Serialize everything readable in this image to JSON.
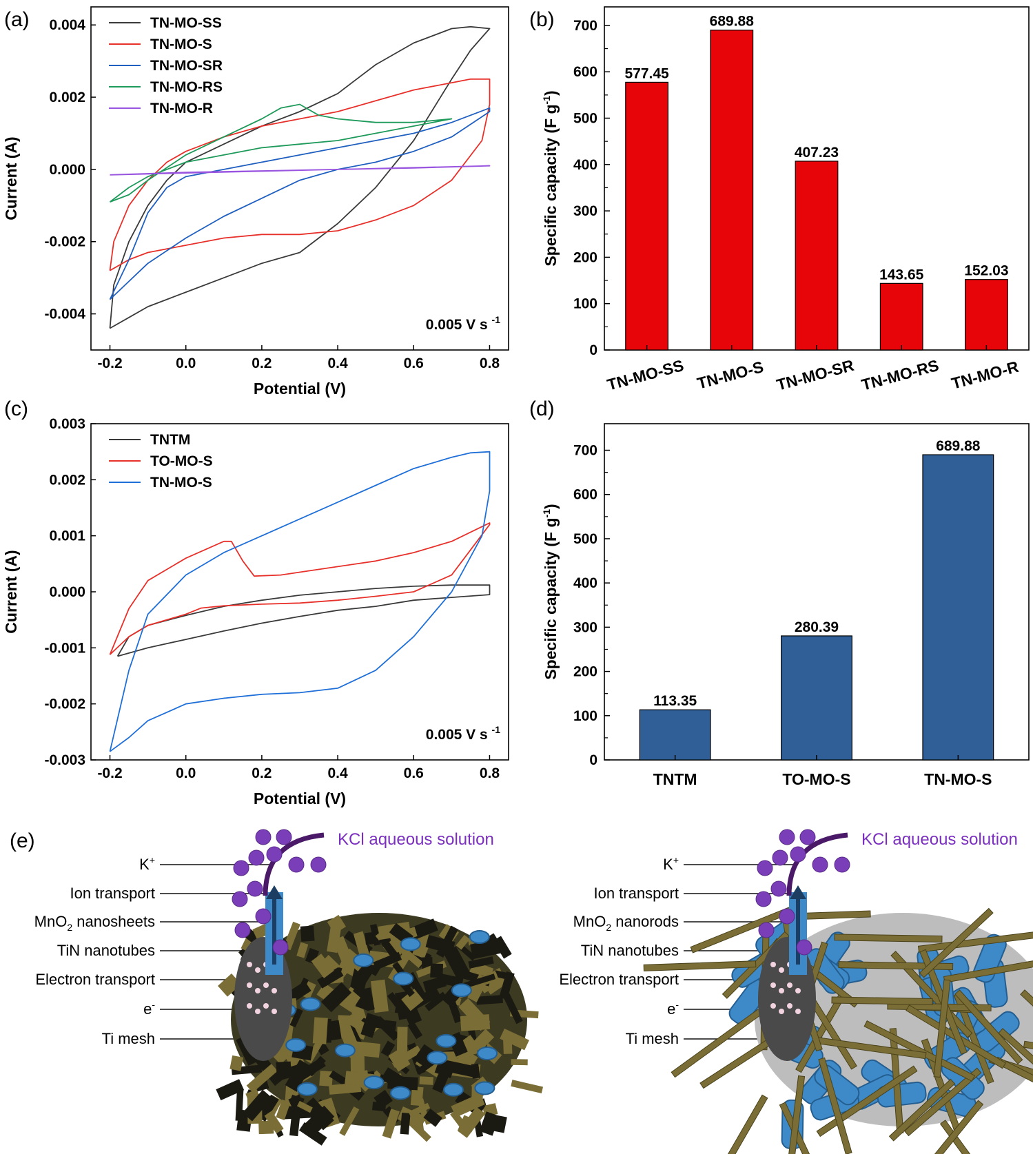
{
  "panels": {
    "a": "(a)",
    "b": "(b)",
    "c": "(c)",
    "d": "(d)",
    "e": "(e)"
  },
  "chart_data": [
    {
      "id": "a",
      "type": "line",
      "xlabel": "Potential (V)",
      "ylabel": "Current (A)",
      "xlim": [
        -0.25,
        0.85
      ],
      "ylim": [
        -0.005,
        0.0045
      ],
      "xticks": [
        "-0.2",
        "0.0",
        "0.2",
        "0.4",
        "0.6",
        "0.8"
      ],
      "yticks": [
        "-0.004",
        "-0.002",
        "0.000",
        "0.002",
        "0.004"
      ],
      "annotation": "0.005 V s",
      "annotation_sup": "-1",
      "legend": "top-left",
      "series": [
        {
          "name": "TN-MO-SS",
          "color": "#3a3a3a",
          "x": [
            -0.2,
            -0.15,
            -0.1,
            -0.05,
            0.0,
            0.1,
            0.2,
            0.3,
            0.4,
            0.5,
            0.6,
            0.7,
            0.75,
            0.8,
            0.8,
            0.75,
            0.7,
            0.6,
            0.5,
            0.45,
            0.4,
            0.3,
            0.2,
            0.1,
            0.0,
            -0.05,
            -0.1,
            -0.15,
            -0.19,
            -0.2
          ],
          "y": [
            -0.0044,
            -0.0041,
            -0.0038,
            -0.0036,
            -0.0034,
            -0.003,
            -0.0026,
            -0.0023,
            -0.0015,
            -0.0005,
            0.0008,
            0.0025,
            0.0033,
            0.0039,
            0.0039,
            0.00395,
            0.0039,
            0.0035,
            0.0029,
            0.0025,
            0.0021,
            0.0016,
            0.0012,
            0.0007,
            0.0002,
            -0.0003,
            -0.001,
            -0.002,
            -0.0032,
            -0.0044
          ]
        },
        {
          "name": "TN-MO-S",
          "color": "#e8302a",
          "x": [
            -0.2,
            -0.15,
            -0.1,
            0.0,
            0.1,
            0.2,
            0.3,
            0.4,
            0.5,
            0.6,
            0.7,
            0.78,
            0.8,
            0.8,
            0.75,
            0.7,
            0.6,
            0.5,
            0.4,
            0.3,
            0.2,
            0.1,
            0.0,
            -0.05,
            -0.1,
            -0.15,
            -0.19,
            -0.2
          ],
          "y": [
            -0.0028,
            -0.0025,
            -0.0023,
            -0.0021,
            -0.0019,
            -0.0018,
            -0.0018,
            -0.0017,
            -0.0014,
            -0.001,
            -0.0003,
            0.0008,
            0.0018,
            0.0025,
            0.0025,
            0.0024,
            0.0022,
            0.0019,
            0.0016,
            0.0014,
            0.0012,
            0.0009,
            0.0005,
            0.0002,
            -0.0003,
            -0.001,
            -0.002,
            -0.0028
          ]
        },
        {
          "name": "TN-MO-SR",
          "color": "#1f5fc0",
          "x": [
            -0.2,
            -0.15,
            -0.1,
            0.0,
            0.1,
            0.2,
            0.3,
            0.4,
            0.5,
            0.6,
            0.7,
            0.8,
            0.8,
            0.7,
            0.6,
            0.5,
            0.4,
            0.3,
            0.2,
            0.1,
            0.0,
            -0.05,
            -0.1,
            -0.15,
            -0.2
          ],
          "y": [
            -0.0036,
            -0.0031,
            -0.0026,
            -0.0019,
            -0.0013,
            -0.0008,
            -0.0003,
            0.0,
            0.0002,
            0.0005,
            0.0009,
            0.0016,
            0.0017,
            0.0013,
            0.001,
            0.0008,
            0.0006,
            0.0004,
            0.0002,
            0.0,
            -0.0002,
            -0.0005,
            -0.0012,
            -0.0025,
            -0.0036
          ]
        },
        {
          "name": "TN-MO-RS",
          "color": "#1e9a5a",
          "x": [
            -0.2,
            -0.15,
            -0.1,
            0.0,
            0.1,
            0.2,
            0.25,
            0.3,
            0.35,
            0.4,
            0.5,
            0.6,
            0.7,
            0.7,
            0.6,
            0.5,
            0.4,
            0.3,
            0.2,
            0.1,
            0.0,
            -0.1,
            -0.15,
            -0.2
          ],
          "y": [
            -0.0009,
            -0.0007,
            -0.0003,
            0.0004,
            0.0009,
            0.0014,
            0.0017,
            0.0018,
            0.0015,
            0.0014,
            0.0013,
            0.0013,
            0.0014,
            0.0014,
            0.0012,
            0.001,
            0.0008,
            0.0007,
            0.0006,
            0.0004,
            0.0002,
            -0.0002,
            -0.0005,
            -0.0009
          ]
        },
        {
          "name": "TN-MO-R",
          "color": "#9a55e0",
          "x": [
            -0.2,
            0.0,
            0.2,
            0.4,
            0.6,
            0.8,
            0.8,
            0.6,
            0.4,
            0.2,
            0.0,
            -0.2
          ],
          "y": [
            -0.00015,
            -0.0001,
            -5e-05,
            0.0,
            4e-05,
            0.0001,
            0.0001,
            5e-05,
            0.0,
            -4e-05,
            -8e-05,
            -0.00015
          ]
        }
      ]
    },
    {
      "id": "b",
      "type": "bar",
      "ylabel": "Specific capacity (F g",
      "ylabel_sup": "-1",
      "ylabel_end": ")",
      "ylim": [
        0,
        740
      ],
      "yticks": [
        "0",
        "100",
        "200",
        "300",
        "400",
        "500",
        "600",
        "700"
      ],
      "categories": [
        "TN-MO-SS",
        "TN-MO-S",
        "TN-MO-SR",
        "TN-MO-RS",
        "TN-MO-R"
      ],
      "values": [
        577.45,
        689.88,
        407.23,
        143.65,
        152.03
      ],
      "labels": [
        "577.45",
        "689.88",
        "407.23",
        "143.65",
        "152.03"
      ],
      "color": "#e8050a"
    },
    {
      "id": "c",
      "type": "line",
      "xlabel": "Potential (V)",
      "ylabel": "Current (A)",
      "xlim": [
        -0.25,
        0.85
      ],
      "ylim": [
        -0.003,
        0.003
      ],
      "xticks": [
        "-0.2",
        "0.0",
        "0.2",
        "0.4",
        "0.6",
        "0.8"
      ],
      "yticks": [
        "-0.003",
        "-0.002",
        "-0.001",
        "0.000",
        "0.001",
        "0.002",
        "0.003"
      ],
      "annotation": "0.005 V s",
      "annotation_sup": "-1",
      "legend": "top-left",
      "series": [
        {
          "name": "TNTM",
          "color": "#3a3a3a",
          "x": [
            -0.18,
            -0.1,
            0.0,
            0.1,
            0.2,
            0.3,
            0.4,
            0.5,
            0.6,
            0.7,
            0.8,
            0.8,
            0.7,
            0.6,
            0.5,
            0.4,
            0.3,
            0.2,
            0.1,
            0.0,
            -0.1,
            -0.15,
            -0.18
          ],
          "y": [
            -0.00115,
            -0.001,
            -0.00085,
            -0.0007,
            -0.00056,
            -0.00044,
            -0.00033,
            -0.00026,
            -0.00015,
            -0.0001,
            -5e-05,
            0.00012,
            0.00012,
            0.0001,
            6e-05,
            0.0,
            -6e-05,
            -0.00015,
            -0.00026,
            -0.00042,
            -0.0006,
            -0.0008,
            -0.00115
          ]
        },
        {
          "name": "TO-MO-S",
          "color": "#e8302a",
          "x": [
            -0.2,
            -0.15,
            -0.1,
            0.0,
            0.04,
            0.1,
            0.2,
            0.3,
            0.4,
            0.5,
            0.6,
            0.7,
            0.8,
            0.8,
            0.7,
            0.6,
            0.5,
            0.4,
            0.3,
            0.25,
            0.18,
            0.15,
            0.12,
            0.1,
            0.0,
            -0.1,
            -0.15,
            -0.2
          ],
          "y": [
            -0.00112,
            -0.0008,
            -0.0006,
            -0.0004,
            -0.00029,
            -0.00025,
            -0.00022,
            -0.0002,
            -0.00015,
            -8e-05,
            0.0,
            0.0003,
            0.0012,
            0.00123,
            0.0009,
            0.0007,
            0.00055,
            0.00045,
            0.00035,
            0.0003,
            0.00028,
            0.00055,
            0.0009,
            0.0009,
            0.0006,
            0.0002,
            -0.0003,
            -0.00112
          ]
        },
        {
          "name": "TN-MO-S",
          "color": "#1f6fd8",
          "x": [
            -0.2,
            -0.15,
            -0.1,
            0.0,
            0.1,
            0.2,
            0.3,
            0.4,
            0.5,
            0.6,
            0.7,
            0.78,
            0.8,
            0.8,
            0.75,
            0.7,
            0.6,
            0.5,
            0.4,
            0.3,
            0.2,
            0.1,
            0.0,
            -0.1,
            -0.15,
            -0.2
          ],
          "y": [
            -0.00285,
            -0.0026,
            -0.0023,
            -0.002,
            -0.0019,
            -0.00183,
            -0.0018,
            -0.00172,
            -0.0014,
            -0.0008,
            0.0,
            0.001,
            0.0018,
            0.0025,
            0.00248,
            0.0024,
            0.0022,
            0.0019,
            0.0016,
            0.0013,
            0.001,
            0.0007,
            0.0003,
            -0.0004,
            -0.0014,
            -0.00285
          ]
        }
      ]
    },
    {
      "id": "d",
      "type": "bar",
      "ylabel": "Specific capacity (F g",
      "ylabel_sup": "-1",
      "ylabel_end": ")",
      "ylim": [
        0,
        760
      ],
      "yticks": [
        "0",
        "100",
        "200",
        "300",
        "400",
        "500",
        "600",
        "700"
      ],
      "categories": [
        "TNTM",
        "TO-MO-S",
        "TN-MO-S"
      ],
      "values": [
        113.35,
        280.39,
        689.88
      ],
      "labels": [
        "113.35",
        "280.39",
        "689.88"
      ],
      "color": "#2f5f96"
    }
  ],
  "schematic": {
    "left": {
      "title": "KCl aqueous solution",
      "labels": [
        {
          "pre": "K",
          "sup": "+",
          "post": ""
        },
        {
          "pre": "Ion transport",
          "sup": "",
          "post": ""
        },
        {
          "pre": "MnO",
          "sub": "2",
          "post": " nanosheets"
        },
        {
          "pre": "TiN nanotubes",
          "sup": "",
          "post": ""
        },
        {
          "pre": "Electron transport",
          "sup": "",
          "post": ""
        },
        {
          "pre": "e",
          "sup": "-",
          "post": ""
        },
        {
          "pre": "Ti mesh",
          "sup": "",
          "post": ""
        }
      ]
    },
    "right": {
      "title": "KCl aqueous solution",
      "labels": [
        {
          "pre": "K",
          "sup": "+",
          "post": ""
        },
        {
          "pre": "Ion transport",
          "sup": "",
          "post": ""
        },
        {
          "pre": "MnO",
          "sub": "2",
          "post": " nanorods"
        },
        {
          "pre": "TiN nanotubes",
          "sup": "",
          "post": ""
        },
        {
          "pre": "Electron transport",
          "sup": "",
          "post": ""
        },
        {
          "pre": "e",
          "sup": "-",
          "post": ""
        },
        {
          "pre": "Ti mesh",
          "sup": "",
          "post": ""
        }
      ]
    },
    "colors": {
      "ion": "#7a3fb8",
      "tube": "#3e8ac8",
      "sheet": "#6b5f2a",
      "mesh": "#4a4a4a"
    }
  }
}
